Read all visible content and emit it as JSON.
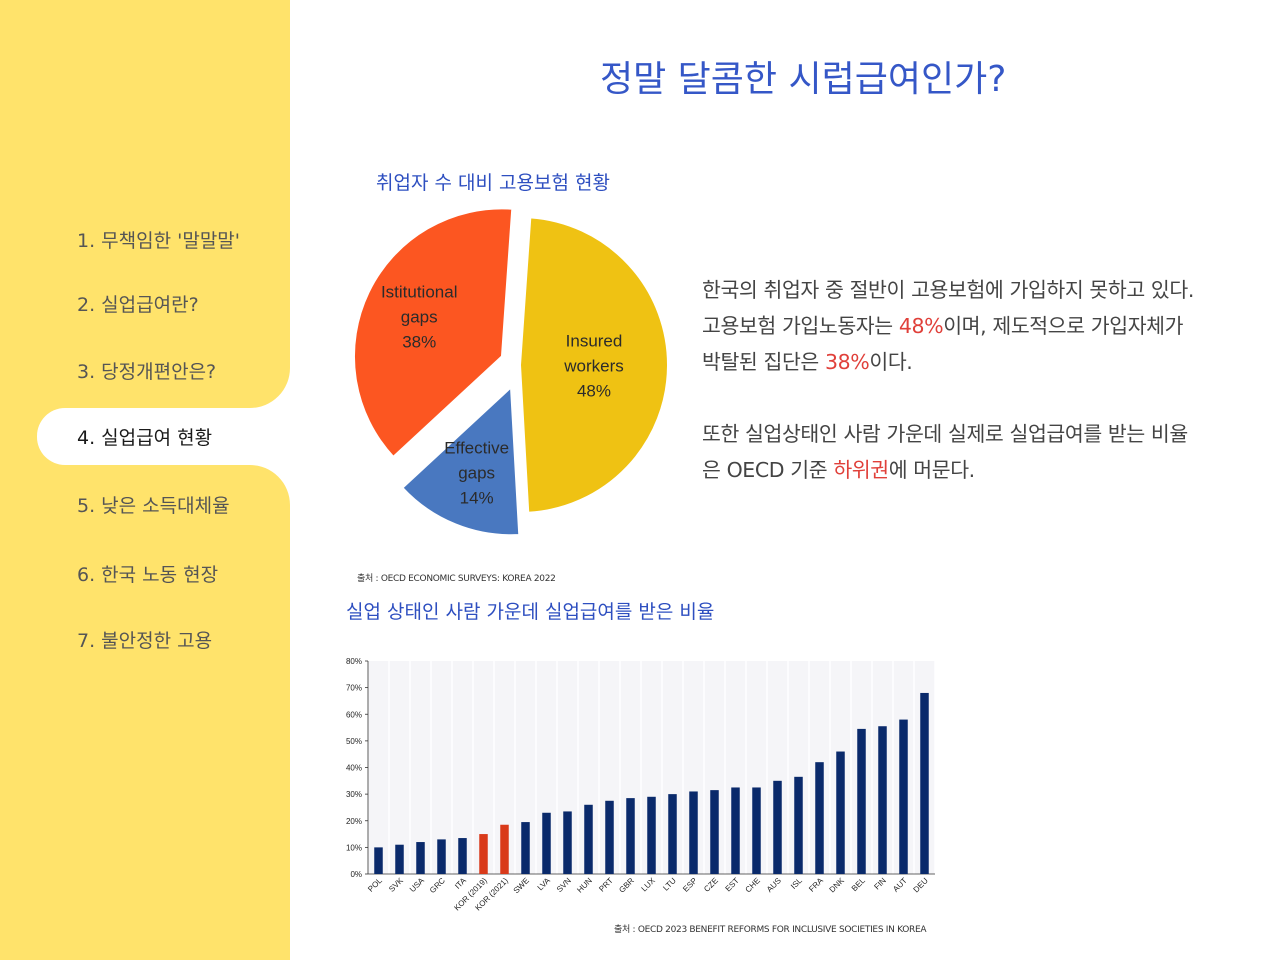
{
  "page": {
    "title": "정말 달콤한 시럽급여인가?"
  },
  "nav": {
    "items": [
      {
        "label": "1. 무책임한 '말말말'",
        "active": false
      },
      {
        "label": "2. 실업급여란?",
        "active": false
      },
      {
        "label": "3. 당정개편안은?",
        "active": false
      },
      {
        "label": "4. 실업급여 현황",
        "active": true
      },
      {
        "label": "5. 낮은 소득대체율",
        "active": false
      },
      {
        "label": "6. 한국 노동 현장",
        "active": false
      },
      {
        "label": "7. 불안정한 고용",
        "active": false
      }
    ]
  },
  "text": {
    "p1_a": "한국의 취업자 중 절반이 고용보험에 가입하지 못하고 있다.",
    "p1_b": "고용보험 가입노동자는 ",
    "p1_h1": "48%",
    "p1_c": "이며, 제도적으로 가입자체가",
    "p1_d": "박탈된 집단은 ",
    "p1_h2": "38%",
    "p1_e": "이다.",
    "p2_a": "또한 실업상태인 사람 가운데 실제로 실업급여를 받는 비율",
    "p2_b": "은 OECD 기준 ",
    "p2_h": "하위권",
    "p2_c": "에 머문다."
  },
  "colors": {
    "accent": "#3557c7",
    "highlight": "#e0403a",
    "sidebar": "#ffe36b",
    "navy": "#0a2a6b",
    "red_bar": "#d93a1a"
  },
  "chart_data": [
    {
      "type": "pie",
      "title": "취업자 수 대비 고용보험 현황",
      "source": "출처 : OECD ECONOMIC SURVEYS: KOREA 2022",
      "slices": [
        {
          "name": "Insured workers",
          "label_lines": [
            "Insured",
            "workers"
          ],
          "value": 48,
          "value_label": "48%",
          "color": "#efc213"
        },
        {
          "name": "Effective gaps",
          "label_lines": [
            "Effective",
            "gaps"
          ],
          "value": 14,
          "value_label": "14%",
          "color": "#4978c0"
        },
        {
          "name": "Istitutional gaps",
          "label_lines": [
            "Istitutional",
            "gaps"
          ],
          "value": 38,
          "value_label": "38%",
          "color": "#fc5621"
        }
      ]
    },
    {
      "type": "bar",
      "title": "실업 상태인 사람 가운데 실업급여를 받은 비율",
      "source": "출처 : OECD 2023 BENEFIT REFORMS FOR INCLUSIVE SOCIETIES IN KOREA",
      "ylim": [
        0,
        80
      ],
      "yticks": [
        "0%",
        "10%",
        "20%",
        "30%",
        "40%",
        "50%",
        "60%",
        "70%",
        "80%"
      ],
      "categories": [
        "POL",
        "SVK",
        "USA",
        "GRC",
        "ITA",
        "KOR (2019)",
        "KOR (2021)",
        "SWE",
        "LVA",
        "SVN",
        "HUN",
        "PRT",
        "GBR",
        "LUX",
        "LTU",
        "ESP",
        "CZE",
        "EST",
        "CHE",
        "AUS",
        "ISL",
        "FRA",
        "DNK",
        "BEL",
        "FIN",
        "AUT",
        "DEU"
      ],
      "values": [
        10,
        11,
        12,
        13,
        13.5,
        15,
        18.5,
        19.5,
        23,
        23.5,
        26,
        27.5,
        28.5,
        29,
        30,
        31,
        31.5,
        32.5,
        32.5,
        35,
        36.5,
        42,
        46,
        54.5,
        55.5,
        58,
        68
      ],
      "highlight": [
        "KOR (2019)",
        "KOR (2021)"
      ]
    }
  ]
}
